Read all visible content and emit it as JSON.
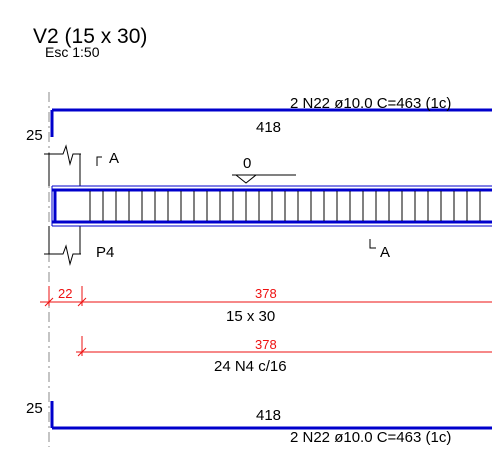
{
  "drawing": {
    "title": "V2 (15 x 30)",
    "scale": "Esc 1:50"
  },
  "top_bar": {
    "callout": "2 N22 ø10.0  C=463  (1c)",
    "length": "418",
    "hook_length": "25"
  },
  "elevation": {
    "section_marker_top": "A",
    "section_marker_bottom": "A",
    "level_mark": "0",
    "support_label": "P4"
  },
  "dimensions": {
    "support_width": "22",
    "span": "378",
    "section": "15 x 30",
    "stirrup_span": "378",
    "stirrups": "24 N4 c/16"
  },
  "bottom_bar": {
    "callout": "2 N22 ø10.0  C=463  (1c)",
    "length": "418",
    "hook_length": "25"
  },
  "colors": {
    "outline": "#0000cc",
    "dimension": "#ee1111",
    "text": "#000000"
  }
}
